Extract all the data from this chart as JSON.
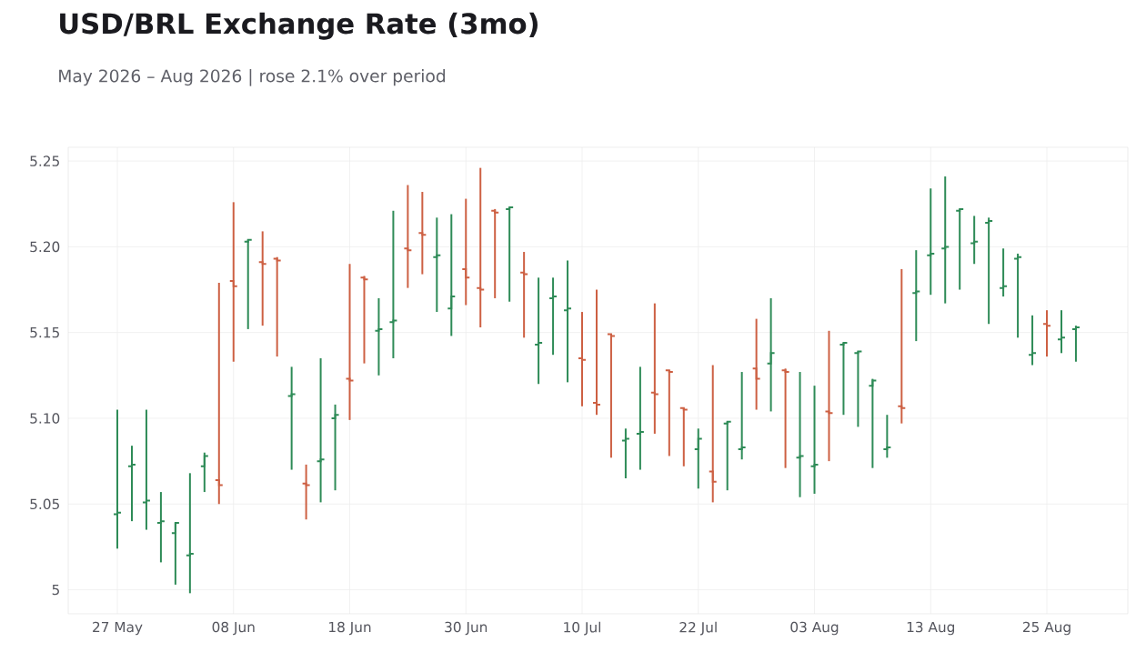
{
  "chart_data": {
    "type": "candlestick",
    "title": "USD/BRL Exchange Rate (3mo)",
    "subtitle": "May 2026 – Aug 2026 | rose 2.1% over period",
    "categories": [
      "27 May",
      null,
      null,
      null,
      null,
      null,
      null,
      null,
      "08 Jun",
      null,
      null,
      null,
      null,
      null,
      null,
      null,
      "18 Jun",
      null,
      null,
      null,
      null,
      null,
      null,
      null,
      "30 Jun",
      null,
      null,
      null,
      null,
      null,
      null,
      null,
      "10 Jul",
      null,
      null,
      null,
      null,
      null,
      null,
      null,
      "22 Jul",
      null,
      null,
      null,
      null,
      null,
      null,
      null,
      "03 Aug",
      null,
      null,
      null,
      null,
      null,
      null,
      null,
      "13 Aug",
      null,
      null,
      null,
      null,
      null,
      null,
      null,
      "25 Aug",
      null,
      null
    ],
    "ohlc": [
      [
        5.044,
        5.105,
        5.024,
        5.045
      ],
      [
        5.072,
        5.084,
        5.04,
        5.073
      ],
      [
        5.051,
        5.105,
        5.035,
        5.052
      ],
      [
        5.039,
        5.057,
        5.016,
        5.04
      ],
      [
        5.033,
        5.039,
        5.003,
        5.039
      ],
      [
        5.02,
        5.068,
        4.998,
        5.021
      ],
      [
        5.072,
        5.08,
        5.057,
        5.078
      ],
      [
        5.064,
        5.179,
        5.05,
        5.061
      ],
      [
        5.18,
        5.226,
        5.133,
        5.177
      ],
      [
        5.203,
        5.204,
        5.152,
        5.204
      ],
      [
        5.191,
        5.209,
        5.154,
        5.19
      ],
      [
        5.193,
        5.194,
        5.136,
        5.192
      ],
      [
        5.113,
        5.13,
        5.07,
        5.114
      ],
      [
        5.062,
        5.073,
        5.041,
        5.061
      ],
      [
        5.075,
        5.135,
        5.051,
        5.076
      ],
      [
        5.1,
        5.108,
        5.058,
        5.102
      ],
      [
        5.123,
        5.19,
        5.099,
        5.122
      ],
      [
        5.182,
        5.183,
        5.132,
        5.181
      ],
      [
        5.151,
        5.17,
        5.125,
        5.152
      ],
      [
        5.156,
        5.221,
        5.135,
        5.157
      ],
      [
        5.199,
        5.236,
        5.176,
        5.198
      ],
      [
        5.208,
        5.232,
        5.184,
        5.207
      ],
      [
        5.194,
        5.217,
        5.162,
        5.195
      ],
      [
        5.164,
        5.219,
        5.148,
        5.171
      ],
      [
        5.187,
        5.228,
        5.166,
        5.182
      ],
      [
        5.176,
        5.246,
        5.153,
        5.175
      ],
      [
        5.221,
        5.222,
        5.17,
        5.22
      ],
      [
        5.222,
        5.223,
        5.168,
        5.223
      ],
      [
        5.185,
        5.197,
        5.147,
        5.184
      ],
      [
        5.143,
        5.182,
        5.12,
        5.144
      ],
      [
        5.17,
        5.182,
        5.137,
        5.171
      ],
      [
        5.163,
        5.192,
        5.121,
        5.164
      ],
      [
        5.135,
        5.162,
        5.107,
        5.134
      ],
      [
        5.109,
        5.175,
        5.102,
        5.108
      ],
      [
        5.149,
        5.149,
        5.077,
        5.148
      ],
      [
        5.087,
        5.094,
        5.065,
        5.088
      ],
      [
        5.091,
        5.13,
        5.07,
        5.092
      ],
      [
        5.115,
        5.167,
        5.091,
        5.114
      ],
      [
        5.128,
        5.128,
        5.078,
        5.127
      ],
      [
        5.106,
        5.106,
        5.072,
        5.105
      ],
      [
        5.082,
        5.094,
        5.059,
        5.088
      ],
      [
        5.069,
        5.131,
        5.051,
        5.063
      ],
      [
        5.097,
        5.098,
        5.058,
        5.098
      ],
      [
        5.082,
        5.127,
        5.076,
        5.083
      ],
      [
        5.129,
        5.158,
        5.105,
        5.123
      ],
      [
        5.132,
        5.17,
        5.104,
        5.138
      ],
      [
        5.128,
        5.129,
        5.071,
        5.127
      ],
      [
        5.077,
        5.127,
        5.054,
        5.078
      ],
      [
        5.072,
        5.119,
        5.056,
        5.073
      ],
      [
        5.104,
        5.151,
        5.075,
        5.103
      ],
      [
        5.143,
        5.144,
        5.102,
        5.144
      ],
      [
        5.138,
        5.139,
        5.095,
        5.139
      ],
      [
        5.119,
        5.123,
        5.071,
        5.122
      ],
      [
        5.082,
        5.102,
        5.077,
        5.083
      ],
      [
        5.107,
        5.187,
        5.097,
        5.106
      ],
      [
        5.173,
        5.198,
        5.145,
        5.174
      ],
      [
        5.195,
        5.234,
        5.172,
        5.196
      ],
      [
        5.199,
        5.241,
        5.167,
        5.2
      ],
      [
        5.221,
        5.222,
        5.175,
        5.222
      ],
      [
        5.202,
        5.218,
        5.19,
        5.203
      ],
      [
        5.214,
        5.217,
        5.155,
        5.215
      ],
      [
        5.176,
        5.199,
        5.171,
        5.177
      ],
      [
        5.193,
        5.196,
        5.147,
        5.194
      ],
      [
        5.137,
        5.16,
        5.131,
        5.138
      ],
      [
        5.155,
        5.163,
        5.136,
        5.154
      ],
      [
        5.146,
        5.163,
        5.138,
        5.147
      ],
      [
        5.152,
        5.154,
        5.133,
        5.153
      ]
    ],
    "colors": [
      "#2e8b57",
      "#2e8b57",
      "#2e8b57",
      "#2e8b57",
      "#2e8b57",
      "#2e8b57",
      "#2e8b57",
      "#cd6043",
      "#cd6043",
      "#2e8b57",
      "#cd6043",
      "#cd6043",
      "#2e8b57",
      "#cd6043",
      "#2e8b57",
      "#2e8b57",
      "#cd6043",
      "#cd6043",
      "#2e8b57",
      "#2e8b57",
      "#cd6043",
      "#cd6043",
      "#2e8b57",
      "#2e8b57",
      "#cd6043",
      "#cd6043",
      "#cd6043",
      "#2e8b57",
      "#cd6043",
      "#2e8b57",
      "#2e8b57",
      "#2e8b57",
      "#cd6043",
      "#cd6043",
      "#cd6043",
      "#2e8b57",
      "#2e8b57",
      "#cd6043",
      "#cd6043",
      "#cd6043",
      "#2e8b57",
      "#cd6043",
      "#2e8b57",
      "#2e8b57",
      "#cd6043",
      "#2e8b57",
      "#cd6043",
      "#2e8b57",
      "#2e8b57",
      "#cd6043",
      "#2e8b57",
      "#2e8b57",
      "#2e8b57",
      "#2e8b57",
      "#cd6043",
      "#2e8b57",
      "#2e8b57",
      "#2e8b57",
      "#2e8b57",
      "#2e8b57",
      "#2e8b57",
      "#2e8b57",
      "#2e8b57",
      "#2e8b57",
      "#cd6043",
      "#2e8b57",
      "#2e8b57"
    ],
    "ylim": [
      4.986,
      5.258
    ],
    "yticks": [
      5,
      5.05,
      {
        "value": 5.1,
        "label": "5.10"
      },
      5.15,
      {
        "value": 5.2,
        "label": "5.20"
      },
      5.25
    ],
    "grid": true
  }
}
